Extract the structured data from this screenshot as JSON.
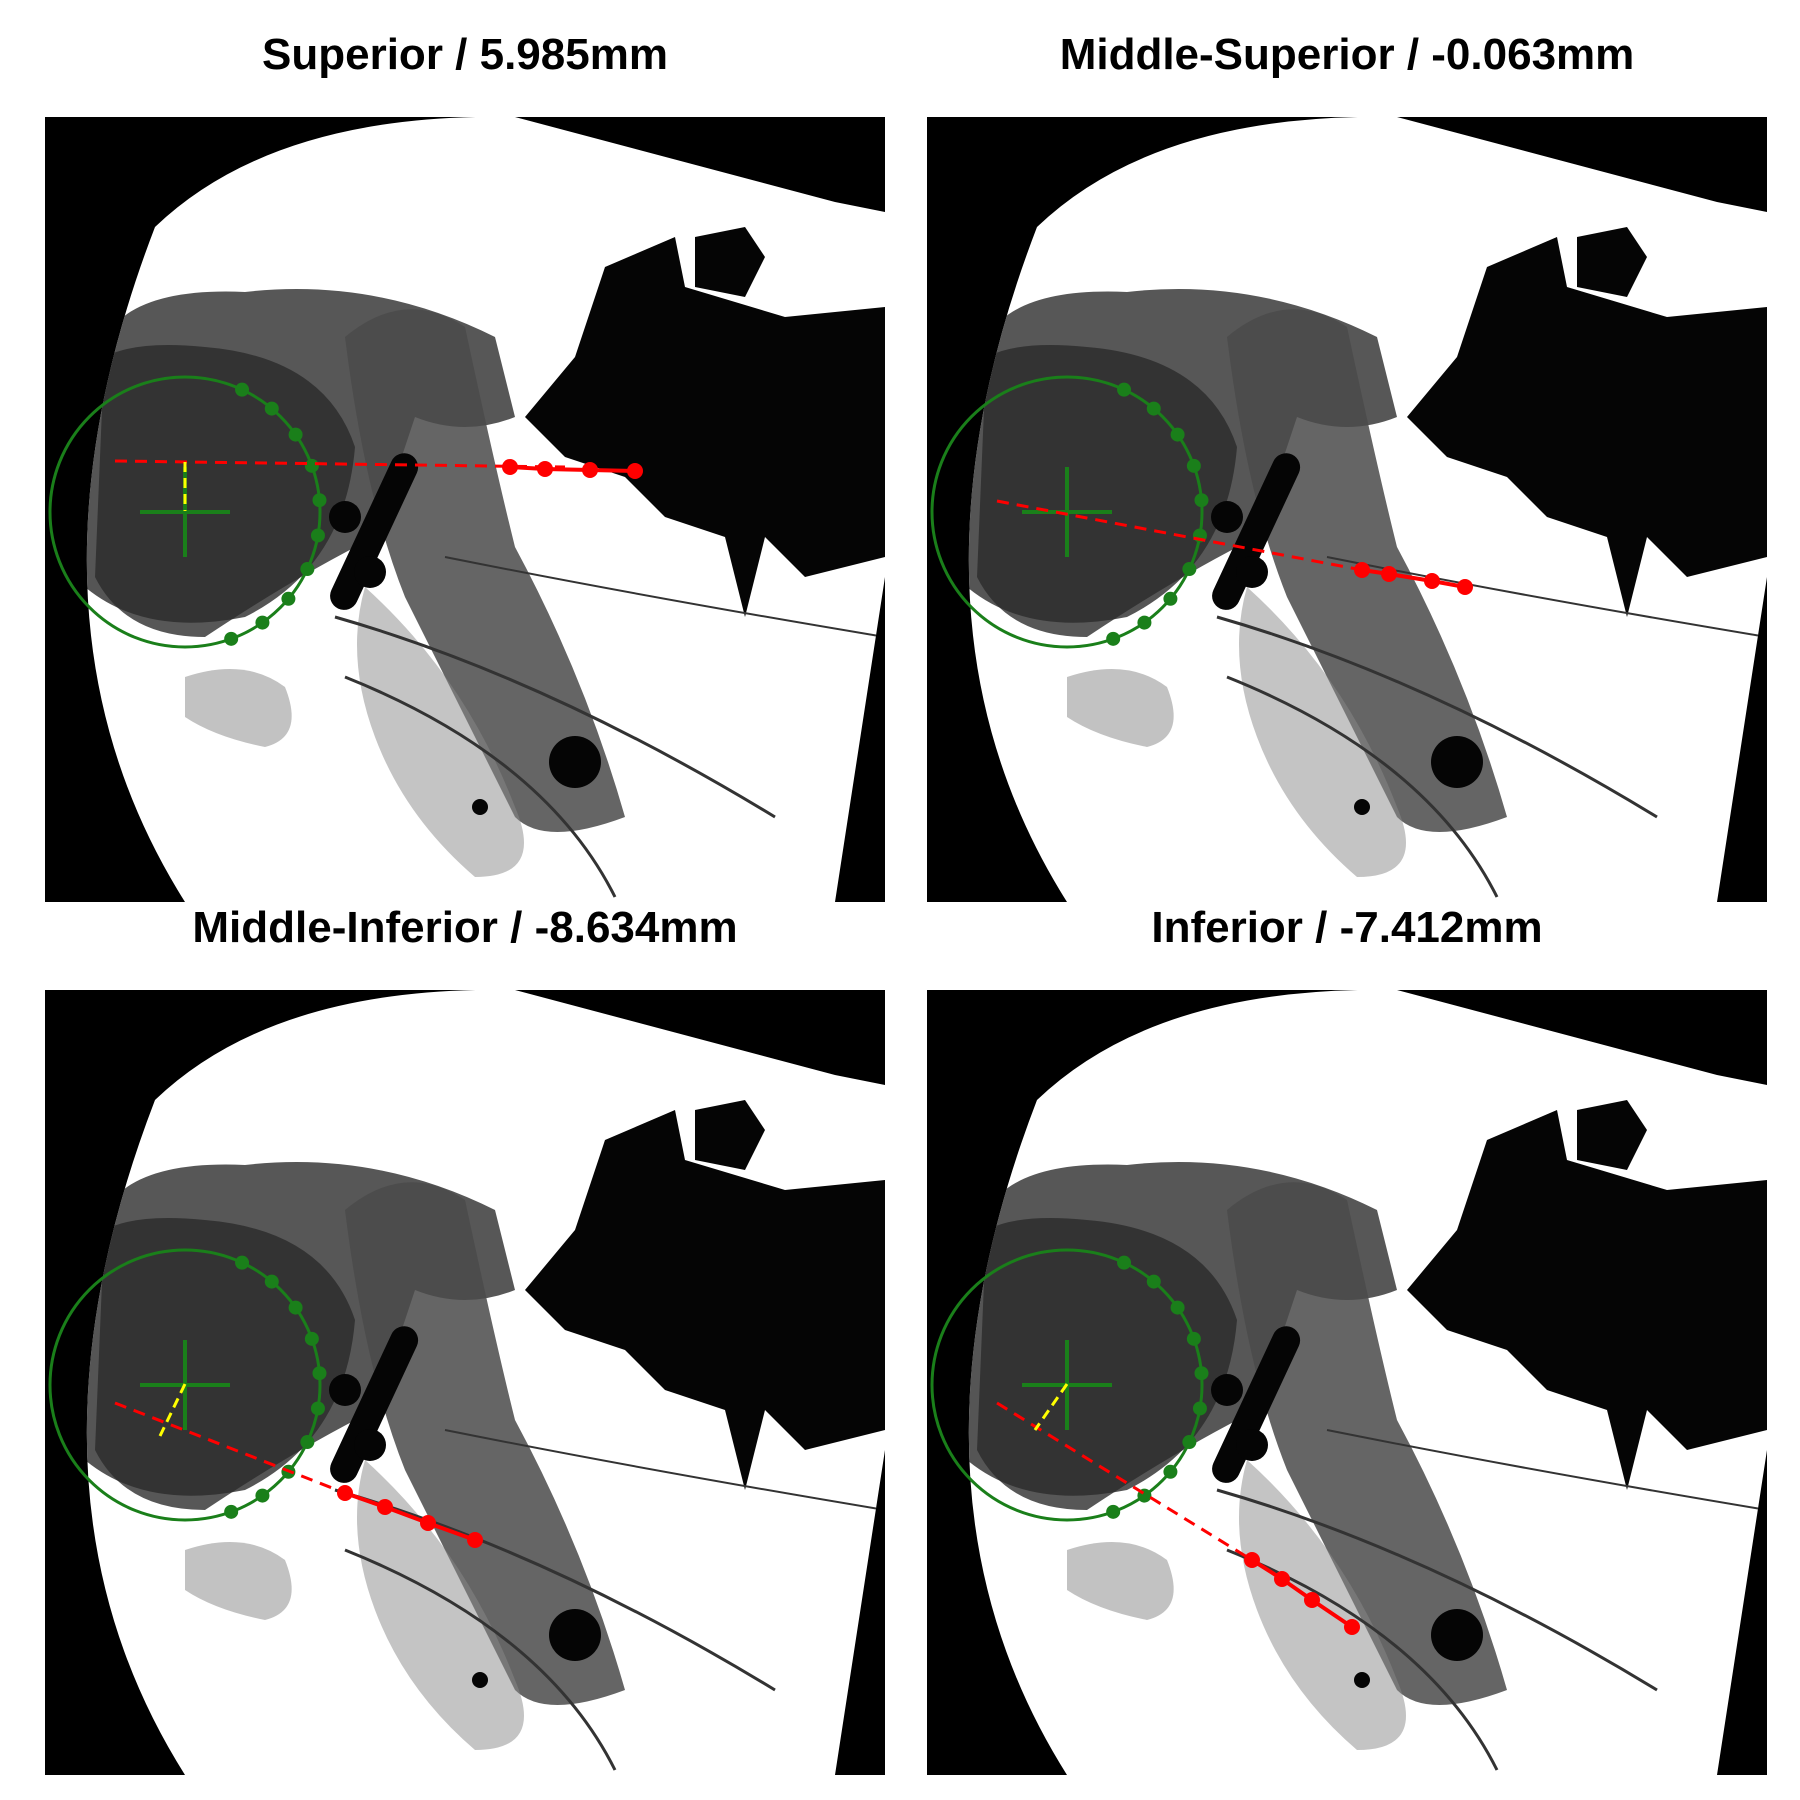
{
  "panels": [
    {
      "title": "Superior / 5.985mm",
      "overlay": {
        "dashed_line": [
          [
            70,
            344
          ],
          [
            520,
            350
          ]
        ],
        "screw_points": [
          [
            465,
            350
          ],
          [
            500,
            352
          ],
          [
            545,
            353
          ],
          [
            590,
            354
          ]
        ],
        "perpendicular": [
          [
            140,
            345
          ],
          [
            140,
            394
          ]
        ]
      }
    },
    {
      "title": "Middle-Superior / -0.063mm",
      "overlay": {
        "dashed_line": [
          [
            70,
            384
          ],
          [
            435,
            453
          ]
        ],
        "screw_points": [
          [
            435,
            453
          ],
          [
            462,
            457
          ],
          [
            505,
            464
          ],
          [
            538,
            470
          ]
        ],
        "perpendicular": [
          [
            140,
            396
          ],
          [
            140,
            396
          ]
        ]
      }
    },
    {
      "title": "Middle-Inferior / -8.634mm",
      "overlay": {
        "dashed_line": [
          [
            70,
            413
          ],
          [
            300,
            503
          ]
        ],
        "screw_points": [
          [
            300,
            503
          ],
          [
            340,
            517
          ],
          [
            383,
            533
          ],
          [
            430,
            550
          ]
        ],
        "perpendicular": [
          [
            140,
            394
          ],
          [
            115,
            446
          ]
        ]
      }
    },
    {
      "title": "Inferior / -7.412mm",
      "overlay": {
        "dashed_line": [
          [
            70,
            413
          ],
          [
            325,
            570
          ]
        ],
        "screw_points": [
          [
            325,
            570
          ],
          [
            355,
            589
          ],
          [
            385,
            610
          ],
          [
            425,
            637
          ]
        ],
        "perpendicular": [
          [
            140,
            394
          ],
          [
            108,
            440
          ]
        ]
      }
    }
  ],
  "colors": {
    "circle": "#1a7f1a",
    "screw": "#ff0000",
    "perpendicular": "#ffff00",
    "background": "#000000",
    "field": "#ffffff"
  }
}
